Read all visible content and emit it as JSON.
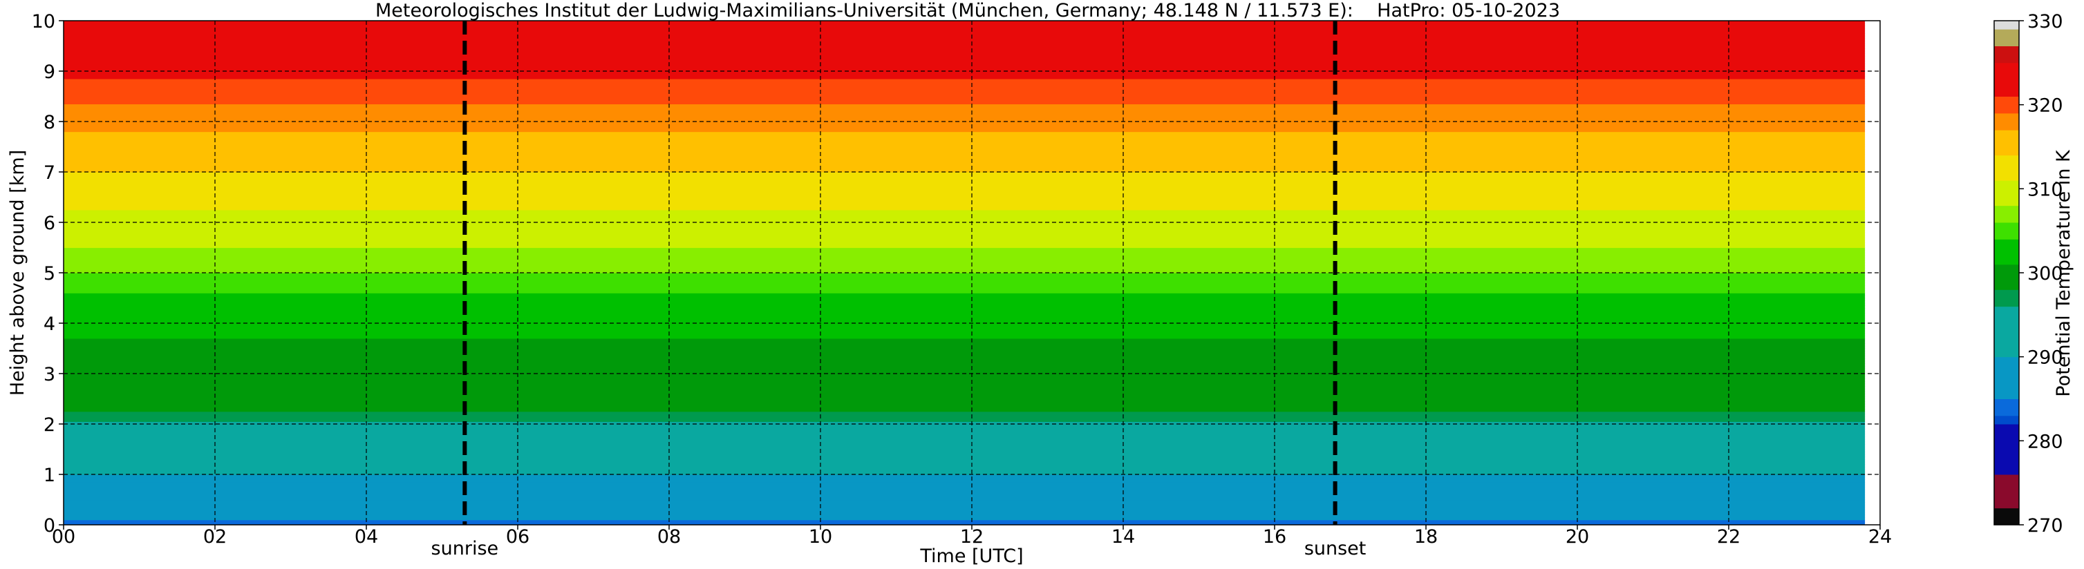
{
  "chart_data": {
    "type": "heatmap",
    "title": "Meteorologisches Institut der Ludwig-Maximilians-Universität (München, Germany; 48.148 N / 11.573 E):    HatPro: 05-10-2023",
    "xlabel": "Time [UTC]",
    "ylabel": "Height above ground [km]",
    "xlim": [
      0,
      24
    ],
    "ylim": [
      0,
      10
    ],
    "x_ticks": [
      0,
      2,
      4,
      6,
      8,
      10,
      12,
      14,
      16,
      18,
      20,
      22,
      24
    ],
    "x_tick_labels": [
      "00",
      "02",
      "04",
      "06",
      "08",
      "10",
      "12",
      "14",
      "16",
      "18",
      "20",
      "22",
      "24"
    ],
    "y_ticks": [
      0,
      1,
      2,
      3,
      4,
      5,
      6,
      7,
      8,
      9,
      10
    ],
    "y_tick_labels": [
      "0",
      "1",
      "2",
      "3",
      "4",
      "5",
      "6",
      "7",
      "8",
      "9",
      "10"
    ],
    "grid": true,
    "data_end_hour": 23.8,
    "vertical_markers": [
      {
        "label": "sunrise",
        "x": 5.3
      },
      {
        "label": "sunset",
        "x": 16.8
      }
    ],
    "colorbar": {
      "label": "Potential Temperature in K",
      "range": [
        270,
        330
      ],
      "ticks": [
        270,
        280,
        290,
        300,
        310,
        320,
        330
      ],
      "tick_labels": [
        "270",
        "280",
        "290",
        "300",
        "310",
        "320",
        "330"
      ],
      "bands": [
        {
          "from": 270,
          "to": 272,
          "color": "#0a0a0a"
        },
        {
          "from": 272,
          "to": 276,
          "color": "#8a0a2c"
        },
        {
          "from": 276,
          "to": 282,
          "color": "#0a0ab0"
        },
        {
          "from": 282,
          "to": 283,
          "color": "#004ccc"
        },
        {
          "from": 283,
          "to": 285,
          "color": "#0a6adb"
        },
        {
          "from": 285,
          "to": 290,
          "color": "#0897c4"
        },
        {
          "from": 290,
          "to": 296,
          "color": "#0aa8a0"
        },
        {
          "from": 296,
          "to": 298,
          "color": "#009a4e"
        },
        {
          "from": 298,
          "to": 301,
          "color": "#009a0a"
        },
        {
          "from": 301,
          "to": 304,
          "color": "#00c000"
        },
        {
          "from": 304,
          "to": 306,
          "color": "#3ee000"
        },
        {
          "from": 306,
          "to": 308,
          "color": "#88ee00"
        },
        {
          "from": 308,
          "to": 311,
          "color": "#ccf000"
        },
        {
          "from": 311,
          "to": 314,
          "color": "#f2e000"
        },
        {
          "from": 314,
          "to": 317,
          "color": "#ffc000"
        },
        {
          "from": 317,
          "to": 319,
          "color": "#ff8c00"
        },
        {
          "from": 319,
          "to": 321,
          "color": "#ff4a0a"
        },
        {
          "from": 321,
          "to": 325,
          "color": "#e80a0a"
        },
        {
          "from": 325,
          "to": 327,
          "color": "#cc1010"
        },
        {
          "from": 327,
          "to": 329,
          "color": "#b4aa5a"
        },
        {
          "from": 329,
          "to": 330,
          "color": "#dcdcdc"
        }
      ]
    },
    "theta_profile": {
      "height_km": [
        0.0,
        0.1,
        0.3,
        0.6,
        1.0,
        1.5,
        1.9,
        2.1,
        2.4,
        2.8,
        3.2,
        3.7,
        4.2,
        4.7,
        5.1,
        5.6,
        6.0,
        6.5,
        7.0,
        7.4,
        7.8,
        8.2,
        8.6,
        9.0,
        9.5,
        10.0
      ],
      "theta_K": [
        283,
        285,
        286.5,
        288,
        290,
        292,
        294,
        297,
        299,
        299.5,
        300,
        301,
        302.5,
        304.5,
        306.5,
        308.5,
        310,
        312,
        314,
        315.5,
        317,
        318.5,
        320,
        321.5,
        322.5,
        323.5
      ]
    }
  }
}
